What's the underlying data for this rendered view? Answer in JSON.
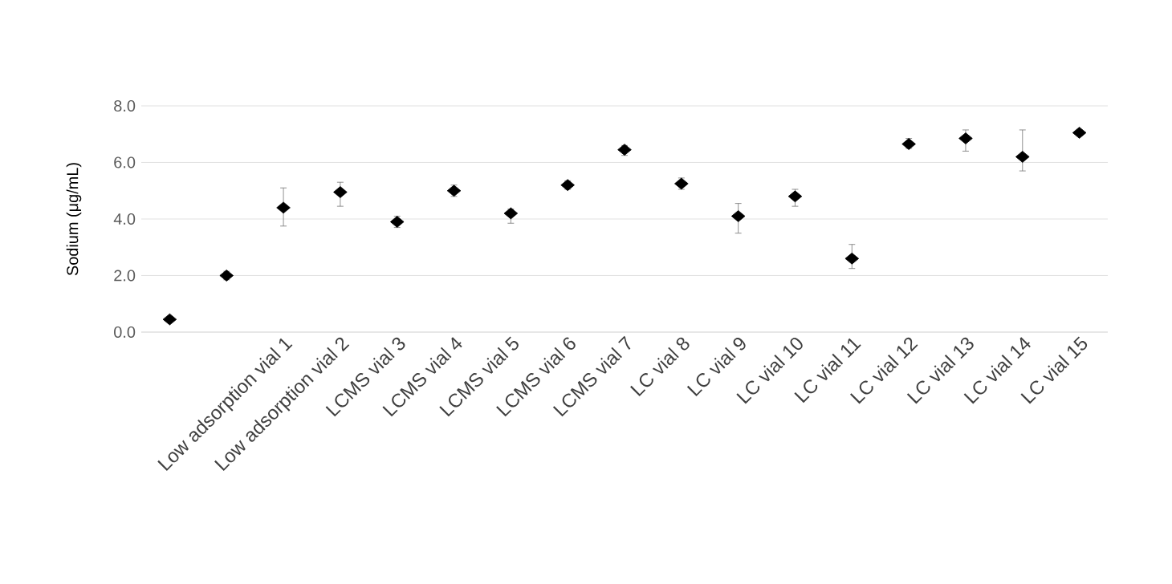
{
  "chart_data": {
    "type": "scatter",
    "ylabel": "Sodium (μg/mL)",
    "categories": [
      null,
      null,
      "Low adsorption vial 1",
      "Low adsorption vial 2",
      "LCMS vial 3",
      "LCMS vial 4",
      "LCMS vial 5",
      "LCMS vial 6",
      "LCMS vial 7",
      "LC vial 8",
      "LC vial 9",
      "LC vial 10",
      "LC vial 11",
      "LC vial 12",
      "LC vial 13",
      "LC vial 14",
      "LC vial 15"
    ],
    "values": [
      0.45,
      2.0,
      4.4,
      4.95,
      3.9,
      5.0,
      4.2,
      5.2,
      6.45,
      5.25,
      4.1,
      4.8,
      2.6,
      6.65,
      6.85,
      6.2,
      7.05
    ],
    "errors": [
      null,
      [
        1.85,
        2.15
      ],
      [
        3.75,
        5.1
      ],
      [
        4.45,
        5.3
      ],
      [
        3.7,
        4.1
      ],
      [
        4.8,
        5.2
      ],
      [
        3.85,
        4.35
      ],
      [
        5.05,
        5.35
      ],
      [
        6.25,
        6.6
      ],
      [
        5.05,
        5.45
      ],
      [
        3.5,
        4.55
      ],
      [
        4.45,
        5.05
      ],
      [
        2.25,
        3.1
      ],
      [
        6.5,
        6.85
      ],
      [
        6.4,
        7.15
      ],
      [
        5.7,
        7.15
      ],
      [
        6.95,
        7.15
      ]
    ],
    "color": "#000000",
    "marker": "diamond",
    "grid": "y",
    "ylim": [
      0,
      8
    ],
    "yticks": [
      {
        "value": 0,
        "label": "0.0"
      },
      {
        "value": 2,
        "label": "2.0"
      },
      {
        "value": 4,
        "label": "4.0"
      },
      {
        "value": 6,
        "label": "6.0"
      },
      {
        "value": 8,
        "label": "8.0"
      }
    ]
  }
}
